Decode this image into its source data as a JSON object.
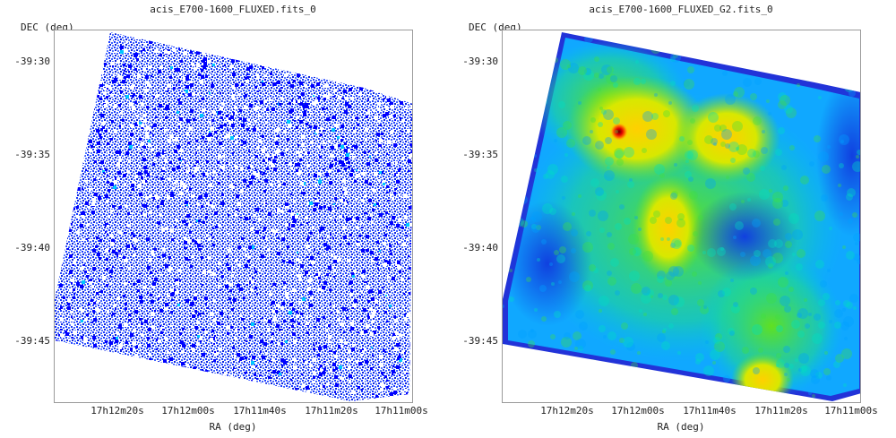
{
  "left_panel": {
    "title": "acis_E700-1600_FLUXED.fits_0",
    "ylabel": "DEC (deg)",
    "xlabel": "RA (deg)",
    "yticks": [
      "-39:30",
      "-39:35",
      "-39:40",
      "-39:45"
    ],
    "xticks": [
      "17h12m20s",
      "17h12m00s",
      "17h11m40s",
      "17h11m20s",
      "17h11m00s"
    ],
    "colormap": [
      "#ffffff",
      "#0000ff",
      "#00c8ff"
    ]
  },
  "right_panel": {
    "title": "acis_E700-1600_FLUXED_G2.fits_0",
    "ylabel": "DEC (deg)",
    "xlabel": "RA (deg)",
    "yticks": [
      "-39:30",
      "-39:35",
      "-39:40",
      "-39:45"
    ],
    "xticks": [
      "17h12m20s",
      "17h12m00s",
      "17h11m40s",
      "17h11m20s",
      "17h11m00s"
    ],
    "colormap": [
      "#0000c8",
      "#00a0ff",
      "#00e0c0",
      "#40e040",
      "#e0e000",
      "#ff8000",
      "#c00000"
    ]
  }
}
